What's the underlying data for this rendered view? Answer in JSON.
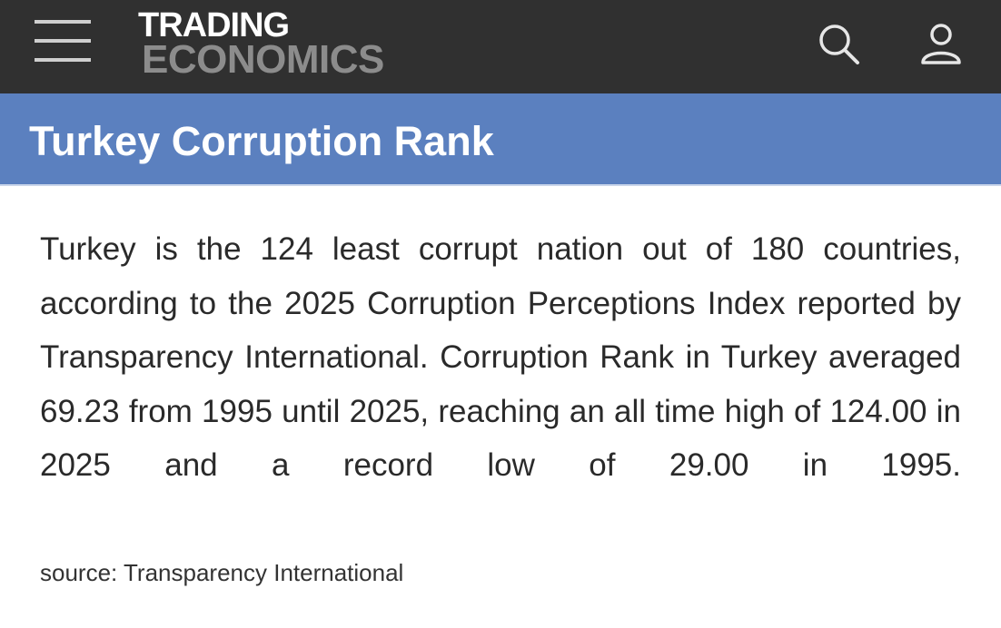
{
  "header": {
    "logo_top": "TRADING",
    "logo_bottom": "ECONOMICS"
  },
  "page": {
    "title": "Turkey Corruption Rank",
    "description": "Turkey is the 124 least corrupt nation out of 180 countries, according to the 2025 Corruption Perceptions Index reported by Transparency International. Corruption Rank in Turkey averaged 69.23 from 1995 until 2025, reaching an all time high of 124.00 in 2025 and a record low of 29.00 in 1995.",
    "source": "source: Transparency International"
  }
}
